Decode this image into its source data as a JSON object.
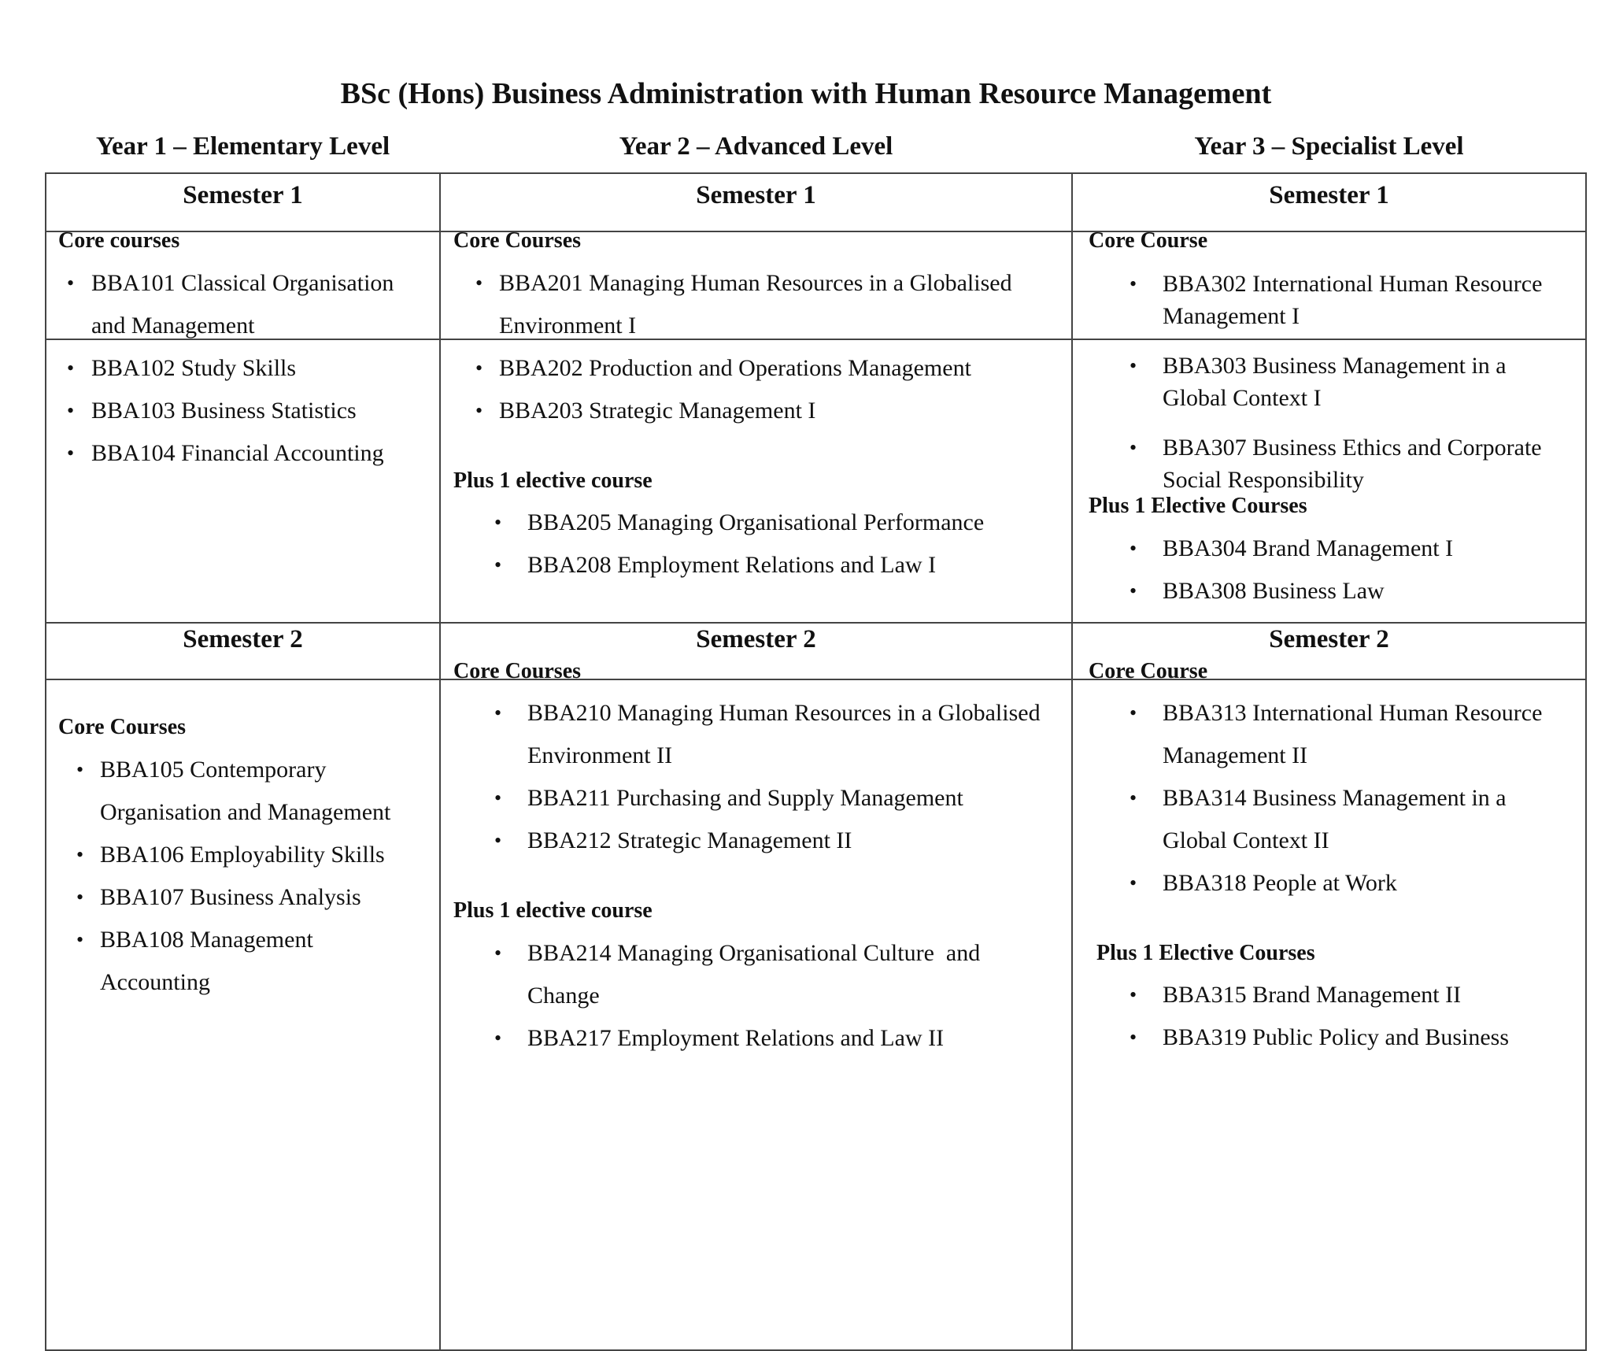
{
  "title": "BSc (Hons) Business Administration with Human Resource Management",
  "years": [
    {
      "label": "Year 1 – Elementary Level"
    },
    {
      "label": "Year 2 – Advanced Level"
    },
    {
      "label": "Year 3 – Specialist Level"
    }
  ],
  "semesters": {
    "s1": "Semester 1",
    "s2": "Semester 2"
  },
  "cells": [
    {
      "sections": [
        {
          "heading": "Core courses",
          "items": [
            "BBA101 Classical Organisation\nand Management",
            "BBA102 Study Skills",
            "BBA103 Business Statistics",
            "BBA104 Financial Accounting"
          ]
        }
      ]
    },
    {
      "sections": [
        {
          "heading": "Core Courses",
          "items": [
            "BBA201 Managing Human Resources in a Globalised\nEnvironment I",
            "BBA202 Production and Operations Management",
            "BBA203 Strategic Management I"
          ]
        },
        {
          "heading": "Plus 1 elective course",
          "items": [
            "BBA205 Managing Organisational Performance",
            "BBA208 Employment Relations and Law I"
          ]
        }
      ]
    },
    {
      "sections": [
        {
          "heading": "Core Course",
          "items": [
            "BBA302 International Human Resource\nManagement I",
            "BBA303 Business Management in a\nGlobal Context I",
            "BBA307 Business Ethics and Corporate\nSocial Responsibility"
          ]
        },
        {
          "heading": "Plus 1 Elective Courses",
          "items": [
            "BBA304 Brand Management I",
            "BBA308 Business Law"
          ]
        }
      ]
    },
    {
      "sections": [
        {
          "heading": "Core Courses",
          "items": [
            "BBA105 Contemporary\nOrganisation and Management",
            "BBA106 Employability Skills",
            "BBA107 Business Analysis",
            "BBA108 Management\nAccounting"
          ]
        }
      ]
    },
    {
      "sections": [
        {
          "heading": "Core Courses",
          "items": [
            "BBA210 Managing Human Resources in a Globalised\nEnvironment II",
            "BBA211 Purchasing and Supply Management",
            "BBA212 Strategic Management II"
          ]
        },
        {
          "heading": "Plus 1 elective course",
          "items": [
            "BBA214 Managing Organisational Culture  and\nChange",
            "BBA217 Employment Relations and Law II"
          ]
        }
      ]
    },
    {
      "sections": [
        {
          "heading": "Core Course",
          "items": [
            "BBA313 International Human Resource\nManagement II",
            "BBA314 Business Management in a\nGlobal Context II",
            "BBA318 People at Work"
          ]
        },
        {
          "heading": "Plus 1 Elective Courses",
          "items": [
            "BBA315 Brand Management II",
            "BBA319 Public Policy and Business"
          ]
        }
      ]
    }
  ]
}
